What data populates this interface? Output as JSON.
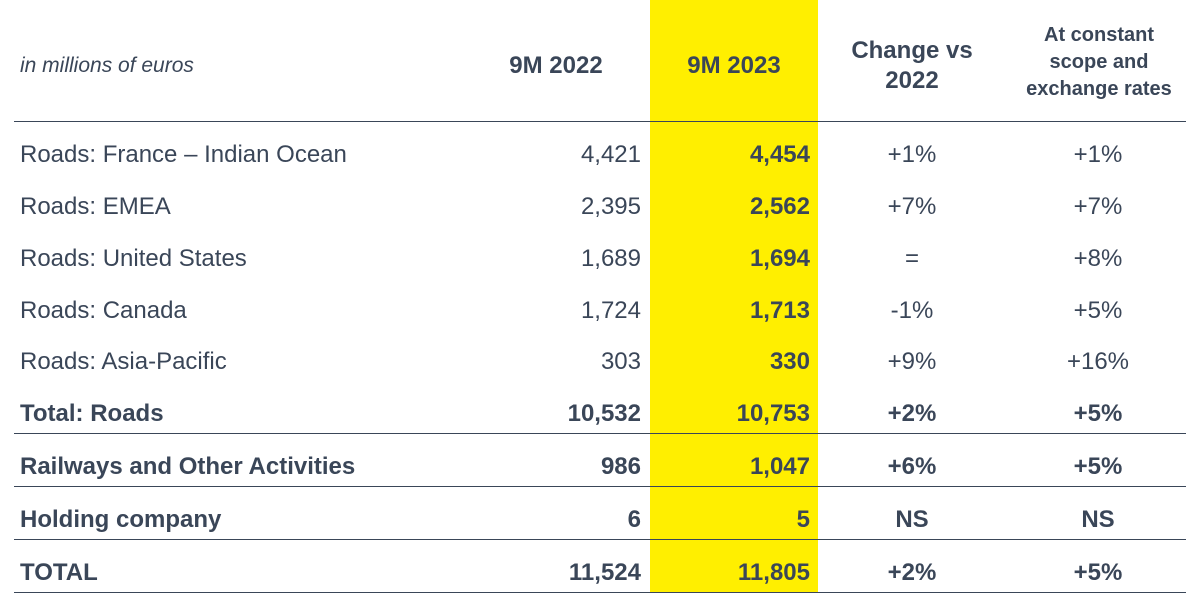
{
  "header": {
    "unit_note": "in millions of euros",
    "col_2022": "9M 2022",
    "col_2023": "9M 2023",
    "col_change": "Change vs 2022",
    "col_constant": "At constant scope and exchange rates"
  },
  "rows": [
    {
      "label": "Roads: France – Indian Ocean",
      "v2022": "4,421",
      "v2023": "4,454",
      "change": "+1%",
      "constant": "+1%"
    },
    {
      "label": "Roads: EMEA",
      "v2022": "2,395",
      "v2023": "2,562",
      "change": "+7%",
      "constant": "+7%"
    },
    {
      "label": "Roads: United States",
      "v2022": "1,689",
      "v2023": "1,694",
      "change": "=",
      "constant": "+8%"
    },
    {
      "label": "Roads: Canada",
      "v2022": "1,724",
      "v2023": "1,713",
      "change": "-1%",
      "constant": "+5%"
    },
    {
      "label": "Roads: Asia-Pacific",
      "v2022": "303",
      "v2023": "330",
      "change": "+9%",
      "constant": "+16%"
    },
    {
      "label": "Total: Roads",
      "v2022": "10,532",
      "v2023": "10,753",
      "change": "+2%",
      "constant": "+5%"
    },
    {
      "label": "Railways and Other Activities",
      "v2022": "986",
      "v2023": "1,047",
      "change": "+6%",
      "constant": "+5%"
    },
    {
      "label": "Holding company",
      "v2022": "6",
      "v2023": "5",
      "change": "NS",
      "constant": "NS"
    },
    {
      "label": "TOTAL",
      "v2022": "11,524",
      "v2023": "11,805",
      "change": "+2%",
      "constant": "+5%"
    }
  ],
  "colors": {
    "highlight": "#ffef00",
    "text": "#3a4658"
  }
}
